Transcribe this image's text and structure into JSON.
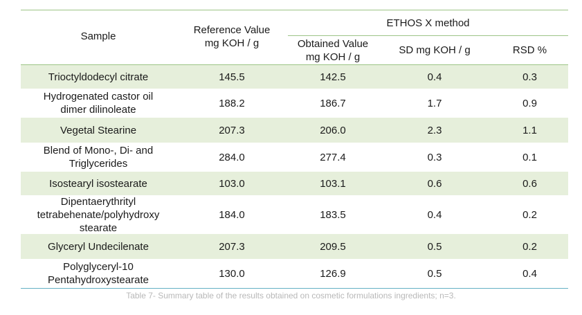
{
  "header": {
    "sample": "Sample",
    "reference_line1": "Reference Value",
    "reference_line2": "mg KOH / g",
    "group": "ETHOS X method",
    "obtained_line1": "Obtained Value",
    "obtained_line2": "mg KOH / g",
    "sd": "SD mg KOH / g",
    "rsd": "RSD %"
  },
  "rows": [
    {
      "sample_lines": [
        "Trioctyldodecyl citrate"
      ],
      "reference": "145.5",
      "obtained": "142.5",
      "sd": "0.4",
      "rsd": "0.3"
    },
    {
      "sample_lines": [
        "Hydrogenated castor oil",
        "dimer dilinoleate"
      ],
      "reference": "188.2",
      "obtained": "186.7",
      "sd": "1.7",
      "rsd": "0.9"
    },
    {
      "sample_lines": [
        "Vegetal Stearine"
      ],
      "reference": "207.3",
      "obtained": "206.0",
      "sd": "2.3",
      "rsd": "1.1"
    },
    {
      "sample_lines": [
        "Blend of Mono-, Di- and",
        "Triglycerides"
      ],
      "reference": "284.0",
      "obtained": "277.4",
      "sd": "0.3",
      "rsd": "0.1"
    },
    {
      "sample_lines": [
        "Isostearyl isostearate"
      ],
      "reference": "103.0",
      "obtained": "103.1",
      "sd": "0.6",
      "rsd": "0.6"
    },
    {
      "sample_lines": [
        "Dipentaerythrityl",
        "tetrabehenate/polyhydroxy",
        "stearate"
      ],
      "reference": "184.0",
      "obtained": "183.5",
      "sd": "0.4",
      "rsd": "0.2"
    },
    {
      "sample_lines": [
        "Glyceryl Undecilenate"
      ],
      "reference": "207.3",
      "obtained": "209.5",
      "sd": "0.5",
      "rsd": "0.2"
    },
    {
      "sample_lines": [
        "Polyglyceryl-10",
        "Pentahydroxystearate"
      ],
      "reference": "130.0",
      "obtained": "126.9",
      "sd": "0.5",
      "rsd": "0.4"
    }
  ],
  "caption": "Table 7- Summary table of the results obtained on cosmetic formulations ingredients; n=3.",
  "colors": {
    "row_shade": "#e6efdb",
    "rule_green": "#9cc486",
    "rule_blue": "#63b0c4",
    "caption_text": "#b8b8b8"
  }
}
